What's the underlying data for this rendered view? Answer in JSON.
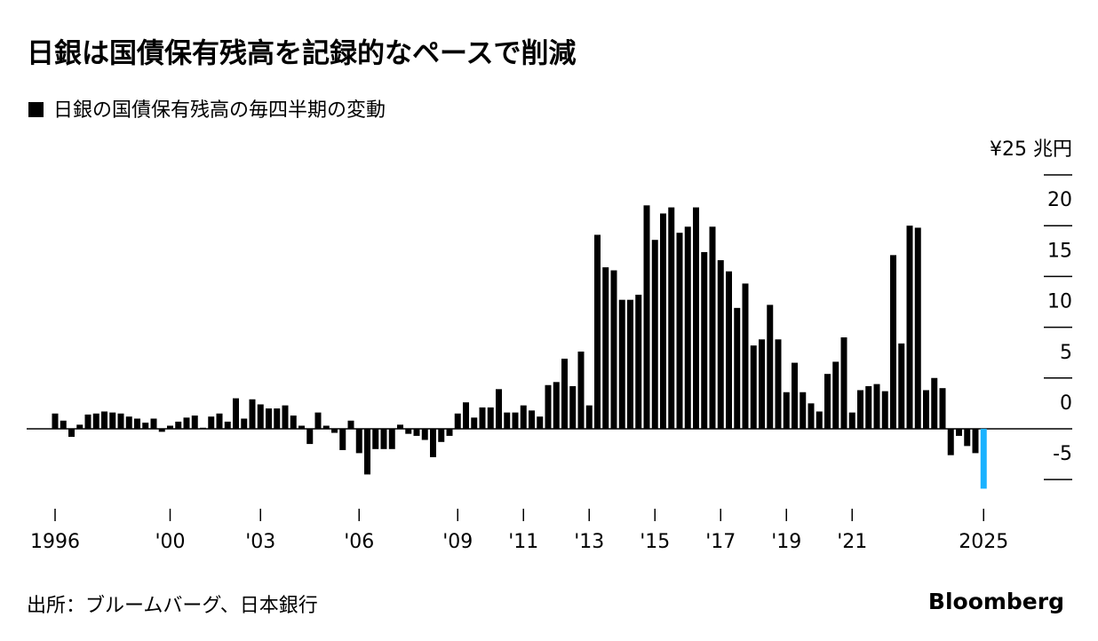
{
  "chart_data": {
    "type": "bar",
    "title": "日銀は国債保有残高を記録的なペースで削減",
    "source": "出所：ブルームバーグ、日本銀行",
    "brand": "Bloomberg",
    "categories": [
      "1996",
      null,
      null,
      null,
      null,
      null,
      null,
      null,
      null,
      null,
      null,
      null,
      null,
      null,
      "'00",
      null,
      null,
      null,
      null,
      null,
      null,
      null,
      null,
      null,
      null,
      "'03",
      null,
      null,
      null,
      null,
      null,
      null,
      null,
      null,
      null,
      null,
      null,
      "'06",
      null,
      null,
      null,
      null,
      null,
      null,
      null,
      null,
      null,
      null,
      null,
      "'09",
      null,
      null,
      null,
      null,
      null,
      null,
      null,
      "'11",
      null,
      null,
      null,
      null,
      null,
      null,
      null,
      "'13",
      null,
      null,
      null,
      null,
      null,
      null,
      null,
      "'15",
      null,
      null,
      null,
      null,
      null,
      null,
      null,
      "'17",
      null,
      null,
      null,
      null,
      null,
      null,
      null,
      "'19",
      null,
      null,
      null,
      null,
      null,
      null,
      null,
      "'21",
      null,
      null,
      null,
      null,
      null,
      null,
      null,
      null,
      null,
      null,
      null,
      null,
      null,
      null,
      null,
      "2025"
    ],
    "series": [
      {
        "name": "日銀の国債保有残高の毎四半期の変動",
        "color": "#000000",
        "values": [
          1.5,
          0.8,
          -0.8,
          0.4,
          1.4,
          1.5,
          1.7,
          1.6,
          1.5,
          1.2,
          1.0,
          0.6,
          1.0,
          -0.3,
          0.3,
          0.7,
          1.1,
          1.3,
          0.1,
          1.2,
          1.5,
          0.7,
          3.0,
          1.0,
          2.9,
          2.4,
          2.0,
          2.0,
          2.3,
          1.3,
          0.3,
          -1.5,
          1.6,
          0.3,
          -0.4,
          -2.1,
          0.8,
          -2.4,
          -4.5,
          -2.0,
          -2.0,
          -2.0,
          0.4,
          -0.5,
          -0.7,
          -1.1,
          -2.8,
          -1.3,
          -0.7,
          1.5,
          2.6,
          1.1,
          2.1,
          2.1,
          3.9,
          1.6,
          1.6,
          2.3,
          1.8,
          1.2,
          4.3,
          4.6,
          6.9,
          4.2,
          7.6,
          2.3,
          19.1,
          15.9,
          15.6,
          12.7,
          12.7,
          13.2,
          22.0,
          18.6,
          21.2,
          21.8,
          19.3,
          19.9,
          21.8,
          17.4,
          19.9,
          16.6,
          15.5,
          11.9,
          14.3,
          8.2,
          8.8,
          12.2,
          8.8,
          3.6,
          6.5,
          3.6,
          2.5,
          1.7,
          5.4,
          6.6,
          9.0,
          1.6,
          3.8,
          4.2,
          4.4,
          3.7,
          17.1,
          8.4,
          20.0,
          19.8,
          3.8,
          5.0,
          4.0,
          -2.6,
          -0.7,
          -1.7,
          -2.4,
          -5.9
        ]
      }
    ],
    "last_color": "#1ab2ff",
    "ylim": [
      -7,
      25
    ],
    "yticks": [
      -5,
      0,
      5,
      10,
      15,
      20,
      {
        "value": 25,
        "label": "¥25 兆円"
      }
    ]
  }
}
